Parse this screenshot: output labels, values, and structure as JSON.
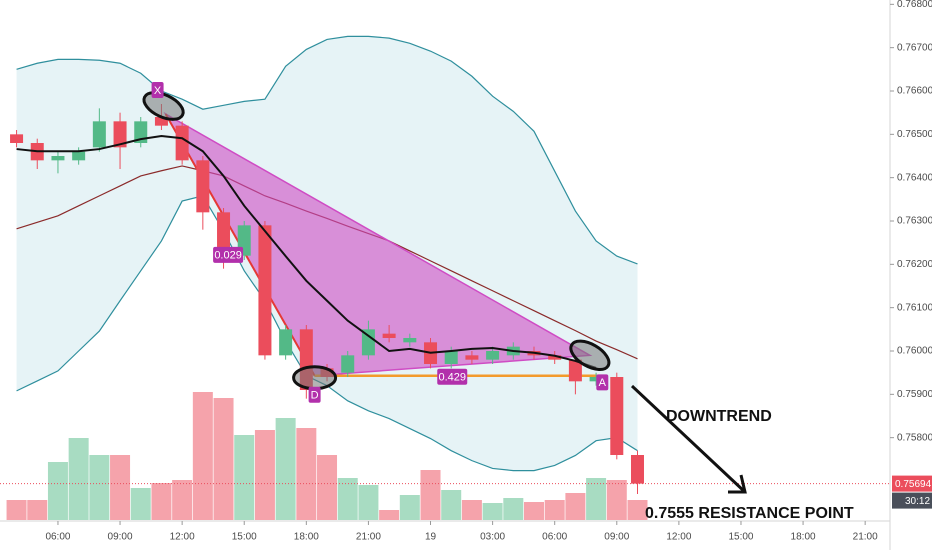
{
  "chart_data": {
    "type": "candlestick",
    "ylim": [
      0.7561,
      0.7681
    ],
    "yticks": [
      {
        "value": 0.758,
        "label": "0.75800"
      },
      {
        "value": 0.759,
        "label": "0.75900"
      },
      {
        "value": 0.76,
        "label": "0.76000"
      },
      {
        "value": 0.761,
        "label": "0.76100"
      },
      {
        "value": 0.762,
        "label": "0.76200"
      },
      {
        "value": 0.763,
        "label": "0.76300"
      },
      {
        "value": 0.764,
        "label": "0.76400"
      },
      {
        "value": 0.765,
        "label": "0.76500"
      },
      {
        "value": 0.766,
        "label": "0.76600"
      },
      {
        "value": 0.767,
        "label": "0.76700"
      },
      {
        "value": 0.768,
        "label": "0.76800"
      }
    ],
    "xlim": [
      -0.8,
      42.2
    ],
    "xticks": [
      {
        "value": 2,
        "label": "06:00"
      },
      {
        "value": 5,
        "label": "09:00"
      },
      {
        "value": 8,
        "label": "12:00"
      },
      {
        "value": 11,
        "label": "15:00"
      },
      {
        "value": 14,
        "label": "18:00"
      },
      {
        "value": 17,
        "label": "21:00"
      },
      {
        "value": 20,
        "label": "19"
      },
      {
        "value": 23,
        "label": "03:00"
      },
      {
        "value": 26,
        "label": "06:00"
      },
      {
        "value": 29,
        "label": "09:00"
      },
      {
        "value": 32,
        "label": "12:00"
      },
      {
        "value": 35,
        "label": "15:00"
      },
      {
        "value": 38,
        "label": "18:00"
      },
      {
        "value": 41,
        "label": "21:00"
      }
    ],
    "candles": {
      "up_color": "#53b987",
      "down_color": "#eb4d5c",
      "open": [
        0.765,
        0.7648,
        0.7644,
        0.7644,
        0.7647,
        0.7653,
        0.7648,
        0.7654,
        0.7652,
        0.7644,
        0.7632,
        0.7622,
        0.7629,
        0.7599,
        0.7605,
        0.7596,
        0.7595,
        0.7599,
        0.7604,
        0.7602,
        0.7602,
        0.7597,
        0.7599,
        0.7598,
        0.7599,
        0.76,
        0.7599,
        0.7598,
        0.7593,
        0.7594,
        0.7576
      ],
      "high": [
        0.7651,
        0.7649,
        0.7646,
        0.7647,
        0.7656,
        0.7655,
        0.7654,
        0.7657,
        0.7653,
        0.7645,
        0.7633,
        0.763,
        0.763,
        0.7606,
        0.7606,
        0.7597,
        0.76,
        0.7607,
        0.7606,
        0.7604,
        0.7603,
        0.7601,
        0.76,
        0.7601,
        0.7602,
        0.7601,
        0.76,
        0.7599,
        0.7595,
        0.7595,
        0.7577
      ],
      "low": [
        0.7647,
        0.7642,
        0.7641,
        0.7643,
        0.7646,
        0.7642,
        0.7647,
        0.7651,
        0.7643,
        0.7628,
        0.7619,
        0.7621,
        0.7598,
        0.7598,
        0.7589,
        0.7593,
        0.7594,
        0.7598,
        0.7602,
        0.7601,
        0.7596,
        0.7596,
        0.7597,
        0.7597,
        0.7598,
        0.7598,
        0.7597,
        0.759,
        0.7592,
        0.7575,
        0.7567
      ],
      "close": [
        0.7648,
        0.7644,
        0.7645,
        0.7646,
        0.7653,
        0.7647,
        0.7653,
        0.7652,
        0.7644,
        0.7632,
        0.7622,
        0.7629,
        0.7599,
        0.7605,
        0.7591,
        0.7594,
        0.7599,
        0.7605,
        0.7603,
        0.7603,
        0.7597,
        0.76,
        0.7598,
        0.76,
        0.7601,
        0.7599,
        0.7598,
        0.7593,
        0.7594,
        0.7576,
        0.75694
      ]
    },
    "volume": {
      "ylim": [
        0,
        130
      ],
      "up_color": "#a8dcc2",
      "down_color": "#f5a3ab",
      "values": [
        20,
        20,
        58,
        82,
        65,
        65,
        32,
        37,
        40,
        128,
        122,
        85,
        90,
        102,
        92,
        65,
        42,
        35,
        10,
        25,
        50,
        30,
        20,
        17,
        22,
        18,
        20,
        27,
        42,
        40,
        20
      ]
    },
    "bands": {
      "line_color": "#2f8f9d",
      "fill_color": "#e6f3f6",
      "basis_color": "#8b2a2a",
      "upper": [
        0.7665,
        0.76664,
        0.76673,
        0.76673,
        0.76671,
        0.76664,
        0.76641,
        0.766,
        0.76581,
        0.76558,
        0.76567,
        0.76576,
        0.76581,
        0.76657,
        0.76696,
        0.76719,
        0.76726,
        0.76726,
        0.76722,
        0.7671,
        0.76692,
        0.76669,
        0.76634,
        0.76588,
        0.76553,
        0.76507,
        0.76415,
        0.76323,
        0.76254,
        0.76219,
        0.76201
      ],
      "lower": [
        0.75908,
        0.75931,
        0.75954,
        0.76,
        0.76046,
        0.76116,
        0.76185,
        0.76254,
        0.76346,
        0.76358,
        0.76277,
        0.76185,
        0.76116,
        0.76023,
        0.75943,
        0.7592,
        0.75885,
        0.75862,
        0.75844,
        0.75821,
        0.75798,
        0.7577,
        0.75747,
        0.75729,
        0.75724,
        0.75724,
        0.75736,
        0.75759,
        0.75793,
        0.758,
        0.7577
      ],
      "basis": [
        0.76282,
        0.76297,
        0.76312,
        0.76335,
        0.76358,
        0.76381,
        0.76404,
        0.76416,
        0.76427,
        0.76416,
        0.76404,
        0.76381,
        0.76358,
        0.76341,
        0.76323,
        0.76306,
        0.76288,
        0.76271,
        0.76254,
        0.76231,
        0.76208,
        0.76185,
        0.76162,
        0.76139,
        0.76116,
        0.76093,
        0.7607,
        0.76047,
        0.76023,
        0.76003,
        0.75982
      ]
    },
    "ma": {
      "color": "#111111",
      "values": [
        0.76466,
        0.76461,
        0.76461,
        0.76461,
        0.76466,
        0.76477,
        0.76489,
        0.76496,
        0.76491,
        0.76461,
        0.76404,
        0.76335,
        0.76277,
        0.76219,
        0.76162,
        0.76116,
        0.7607,
        0.76035,
        0.76,
        0.76005,
        0.75996,
        0.76,
        0.76005,
        0.76007,
        0.76,
        0.75996,
        0.75989,
        0.75977,
        0.75961
      ]
    },
    "pattern": {
      "fill": "#cf4cc4",
      "label_color": "#b230ab",
      "points": [
        {
          "label": "X",
          "x": 7.2,
          "y": 0.76547
        },
        {
          "label": "D",
          "x": 14.4,
          "y": 0.75943
        },
        {
          "label": "A",
          "x": 27.7,
          "y": 0.7599
        }
      ],
      "ratios": [
        0.029,
        0.429
      ]
    },
    "last_price": 0.75694,
    "last_price_color": "#eb4d5c",
    "countdown": "30:12",
    "annotations": [
      "DOWNTREND",
      "0.7555 RESISTANCE POINT"
    ]
  }
}
